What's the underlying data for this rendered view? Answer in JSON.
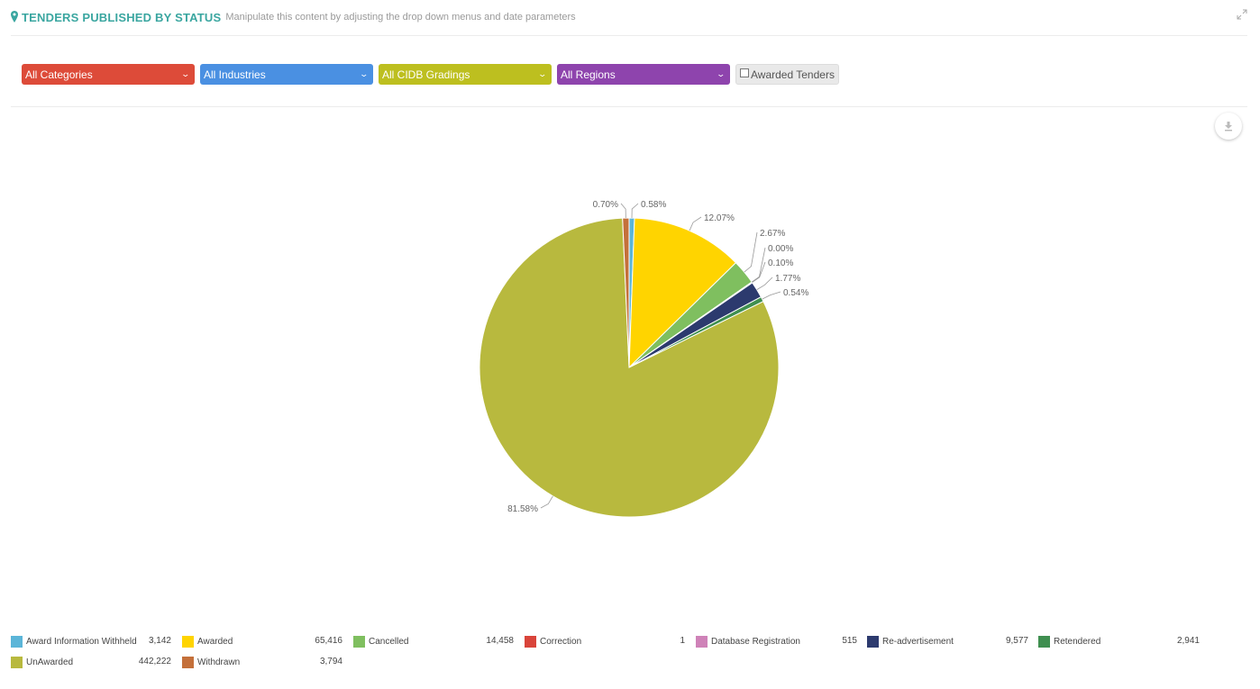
{
  "header": {
    "title": "TENDERS PUBLISHED BY STATUS",
    "subtitle": "Manipulate this content by adjusting the drop down menus and date parameters"
  },
  "filters": [
    {
      "label": "All Categories",
      "color": "#dd4b39"
    },
    {
      "label": "All Industries",
      "color": "#4a90e2"
    },
    {
      "label": "All CIDB Gradings",
      "color": "#bdbf1f"
    },
    {
      "label": "All Regions",
      "color": "#8e44ad"
    }
  ],
  "awarded_checkbox": {
    "label": "Awarded Tenders",
    "checked": false
  },
  "chart_data": {
    "type": "pie",
    "series": [
      {
        "name": "Award Information Withheld",
        "value": 3142,
        "label": "0.58%",
        "color": "#5bb5d8"
      },
      {
        "name": "Awarded",
        "value": 65416,
        "label": "12.07%",
        "color": "#ffd400"
      },
      {
        "name": "Cancelled",
        "value": 14458,
        "label": "2.67%",
        "color": "#7fbf5f"
      },
      {
        "name": "Correction",
        "value": 1,
        "label": "0.00%",
        "color": "#d9443a"
      },
      {
        "name": "Database Registration",
        "value": 515,
        "label": "0.10%",
        "color": "#cf82b8"
      },
      {
        "name": "Re-advertisement",
        "value": 9577,
        "label": "1.77%",
        "color": "#2c3a6e"
      },
      {
        "name": "Retendered",
        "value": 2941,
        "label": "0.54%",
        "color": "#3f8f50"
      },
      {
        "name": "UnAwarded",
        "value": 442222,
        "label": "81.58%",
        "color": "#b8b93e"
      },
      {
        "name": "Withdrawn",
        "value": 3794,
        "label": "0.70%",
        "color": "#c4703a"
      }
    ],
    "legend": {
      "items": [
        {
          "name": "Award Information Withheld",
          "value": "3,142"
        },
        {
          "name": "Awarded",
          "value": "65,416"
        },
        {
          "name": "Cancelled",
          "value": "14,458"
        },
        {
          "name": "Correction",
          "value": "1"
        },
        {
          "name": "Database Registration",
          "value": "515"
        },
        {
          "name": "Re-advertisement",
          "value": "9,577"
        },
        {
          "name": "Retendered",
          "value": "2,941"
        },
        {
          "name": "UnAwarded",
          "value": "442,222"
        },
        {
          "name": "Withdrawn",
          "value": "3,794"
        }
      ],
      "placement": "bottom"
    }
  }
}
